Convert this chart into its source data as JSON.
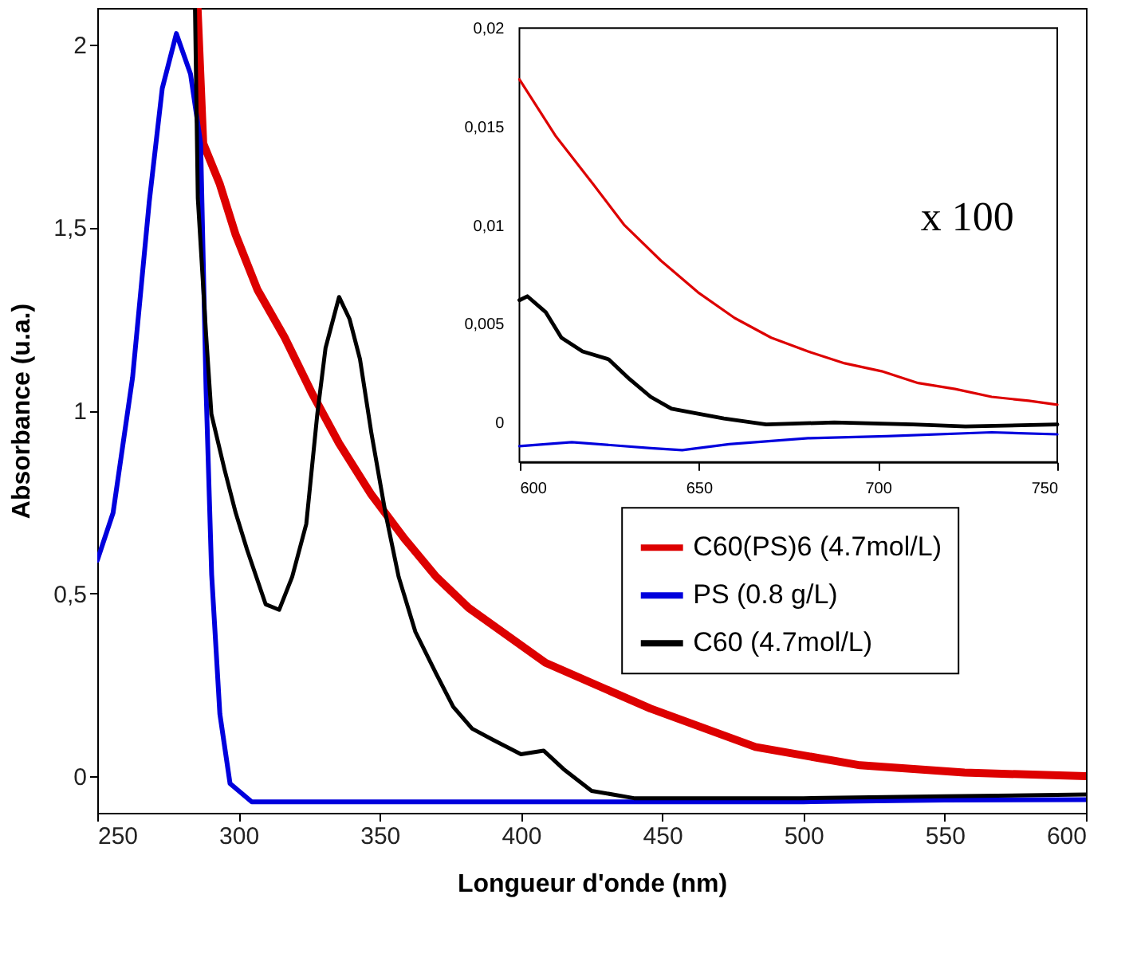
{
  "chart_data": [
    {
      "type": "line",
      "xlabel": "Longueur d'onde (nm)",
      "ylabel": "Absorbance (u.a.)",
      "xlim": [
        250,
        600
      ],
      "ylim": [
        -0.1,
        2.1
      ],
      "xticks": [
        250,
        300,
        350,
        400,
        450,
        500,
        550,
        600
      ],
      "yticks": [
        0,
        {
          "value": 0.5,
          "label": "0,5"
        },
        1,
        {
          "value": 1.5,
          "label": "1,5"
        },
        2
      ],
      "grid": false,
      "legend": "right",
      "line_style": "solid",
      "marker": "none",
      "series": [
        {
          "name": "C60(PS)6 (4.7mol/L)",
          "color": "#dd0000",
          "x": [
            285.5,
            287.5,
            293.3,
            299,
            306.7,
            316.3,
            325.8,
            335.6,
            347,
            358.7,
            370,
            381.5,
            408.7,
            445.8,
            483,
            520,
            557,
            600
          ],
          "values": [
            2.1,
            1.73,
            1.62,
            1.48,
            1.33,
            1.2,
            1.05,
            0.91,
            0.77,
            0.65,
            0.545,
            0.46,
            0.31,
            0.185,
            0.08,
            0.03,
            0.01,
            0.0
          ]
        },
        {
          "name": "PS (0.8 g/L)",
          "color": "#0000dd",
          "x": [
            250,
            255.6,
            262.5,
            268.4,
            273,
            278,
            283,
            286.6,
            288.5,
            290.5,
            293.4,
            297,
            304.7,
            350,
            400,
            450,
            500,
            550,
            600
          ],
          "values": [
            0.59,
            0.72,
            1.09,
            1.57,
            1.88,
            2.03,
            1.92,
            1.73,
            1.06,
            0.55,
            0.17,
            -0.02,
            -0.07,
            -0.07,
            -0.07,
            -0.07,
            -0.07,
            -0.065,
            -0.064
          ]
        },
        {
          "name": "C60 (4.7mol/L)",
          "color": "#000000",
          "x": [
            284.6,
            285.6,
            288.5,
            290.4,
            295,
            299,
            303,
            309.6,
            314.4,
            319,
            324,
            327.9,
            330.8,
            335.6,
            339.3,
            343,
            347,
            352,
            356.7,
            362.6,
            370,
            376,
            382.7,
            390,
            400,
            408,
            415,
            425,
            440,
            500,
            550,
            600
          ],
          "values": [
            2.1,
            1.58,
            1.21,
            0.99,
            0.84,
            0.72,
            0.62,
            0.47,
            0.455,
            0.545,
            0.69,
            0.99,
            1.17,
            1.31,
            1.25,
            1.14,
            0.94,
            0.72,
            0.545,
            0.395,
            0.28,
            0.19,
            0.13,
            0.1,
            0.06,
            0.07,
            0.02,
            -0.04,
            -0.06,
            -0.06,
            -0.055,
            -0.05
          ]
        }
      ]
    },
    {
      "type": "line",
      "xlim": [
        600,
        750
      ],
      "ylim": [
        -0.002,
        0.02
      ],
      "xticks": [
        600,
        650,
        700,
        750
      ],
      "yticks": [
        0,
        {
          "value": 0.005,
          "label": "0,005"
        },
        {
          "value": 0.01,
          "label": "0,01"
        },
        {
          "value": 0.015,
          "label": "0,015"
        },
        {
          "value": 0.02,
          "label": "0,02"
        }
      ],
      "grid": false,
      "line_style": "solid",
      "marker": "none",
      "annotations": [
        "x 100"
      ],
      "series": [
        {
          "color": "#dd0000",
          "x": [
            600,
            610.2,
            620.5,
            629.3,
            639.5,
            649.8,
            660,
            670.2,
            680.5,
            690.7,
            701,
            711.2,
            721.5,
            731.7,
            742,
            750
          ],
          "values": [
            0.0174,
            0.0145,
            0.0121,
            0.01,
            0.0082,
            0.0066,
            0.0053,
            0.0043,
            0.0036,
            0.003,
            0.0026,
            0.002,
            0.0017,
            0.0013,
            0.0011,
            0.0009
          ]
        },
        {
          "color": "#0000dd",
          "x": [
            600,
            614.6,
            636.6,
            645.4,
            658.5,
            680.5,
            702.4,
            731.7,
            750
          ],
          "values": [
            -0.0012,
            -0.001,
            -0.0013,
            -0.0014,
            -0.0011,
            -0.0008,
            -0.0007,
            -0.0005,
            -0.0006
          ]
        },
        {
          "color": "#000000",
          "x": [
            600,
            602.2,
            607.3,
            611.7,
            617.6,
            624.9,
            630.7,
            636.6,
            642.4,
            648.3,
            657,
            668.8,
            687.8,
            709.8,
            724.4,
            750
          ],
          "values": [
            0.0062,
            0.0064,
            0.0056,
            0.0043,
            0.0036,
            0.0032,
            0.0022,
            0.0013,
            0.0007,
            0.0005,
            0.0002,
            -0.0001,
            0.0,
            -0.0001,
            -0.0002,
            -0.0001
          ]
        }
      ]
    }
  ]
}
